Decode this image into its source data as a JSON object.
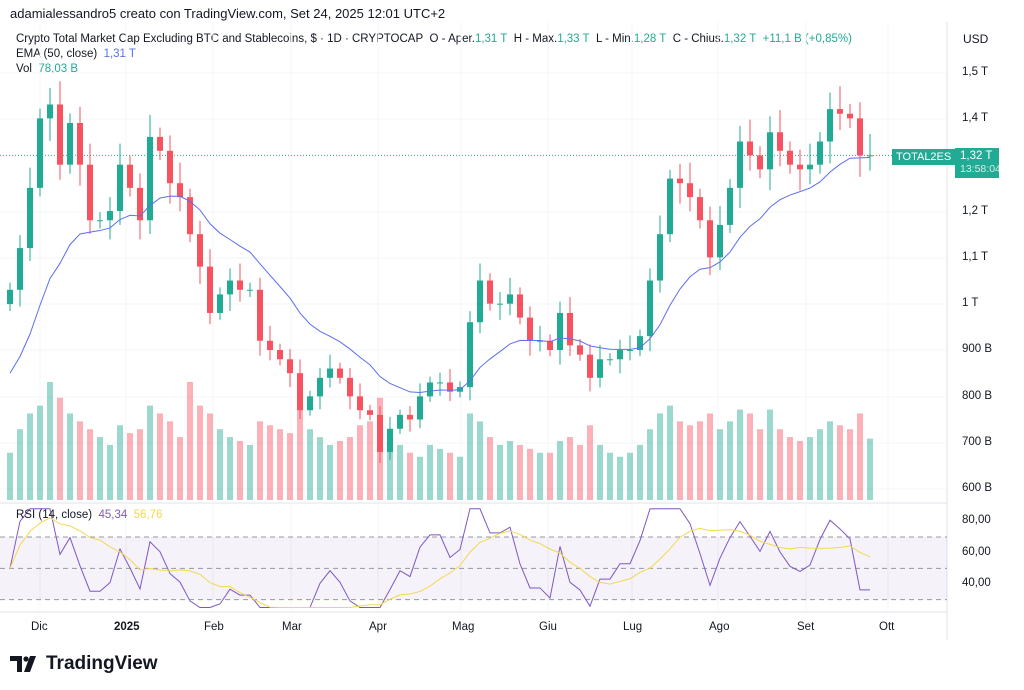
{
  "credit": "adamialessandro5 creato con TradingView.com, Set 24, 2025 12:01 UTC+2",
  "legend": {
    "title": "Crypto Total Market Cap Excluding BTC and Stablecoins, $ · 1D · CRYPTOCAP",
    "o_label": "O - Aper.",
    "o": "1,31 T",
    "h_label": "H - Max.",
    "h": "1,33 T",
    "l_label": "L - Min.",
    "l": "1,28 T",
    "c_label": "C - Chius.",
    "c": "1,32 T",
    "change": "+11,1 B (+0,85%)",
    "ema_label": "EMA (50, close)",
    "ema": "1,31 T",
    "vol_label": "Vol",
    "vol": "78,03 B"
  },
  "currency": "USD",
  "symbol_tag": "TOTAL2ES",
  "last_price": "1,32 T",
  "countdown": "13:58:04",
  "rsi": {
    "label": "RSI (14, close)",
    "value": "45,34",
    "ma": "56,76"
  },
  "colors": {
    "up": "#22ab94",
    "down": "#f7525f",
    "ema": "#5b6ff0",
    "rsi": "#7e57c2",
    "rsi_ma": "#f2d94e"
  },
  "logo": "TradingView",
  "chart_data": {
    "type": "candlestick",
    "date_range": [
      "2024-11-21",
      "2025-09-24"
    ],
    "y_ticks": [
      "1,5 T",
      "1,4 T",
      "1,2 T",
      "1,1 T",
      "1 T",
      "900 B",
      "800 B",
      "700 B",
      "600 B"
    ],
    "y_tick_values": [
      1500,
      1400,
      1200,
      1100,
      1000,
      900,
      800,
      700,
      600
    ],
    "ylim_billions": [
      600,
      1500
    ],
    "x_ticks": [
      "Dic",
      "2025",
      "Feb",
      "Mar",
      "Apr",
      "Mag",
      "Giu",
      "Lug",
      "Ago",
      "Set",
      "Ott"
    ],
    "rsi_ticks": [
      "80,00",
      "60,00",
      "40,00"
    ],
    "rsi_tick_values": [
      80,
      60,
      40
    ],
    "rsi_bands": [
      70,
      50,
      30
    ],
    "closes_billions": [
      1030,
      1120,
      1250,
      1400,
      1430,
      1300,
      1390,
      1300,
      1180,
      1180,
      1200,
      1300,
      1250,
      1180,
      1360,
      1330,
      1260,
      1230,
      1150,
      1080,
      980,
      1020,
      1050,
      1030,
      1030,
      920,
      900,
      880,
      850,
      770,
      800,
      840,
      860,
      840,
      800,
      770,
      760,
      680,
      730,
      760,
      750,
      800,
      830,
      830,
      810,
      820,
      960,
      1050,
      1000,
      1000,
      1020,
      970,
      920,
      920,
      900,
      980,
      910,
      890,
      840,
      880,
      880,
      900,
      900,
      930,
      1050,
      1150,
      1270,
      1260,
      1230,
      1180,
      1100,
      1170,
      1250,
      1350,
      1320,
      1290,
      1370,
      1330,
      1300,
      1290,
      1300,
      1350,
      1420,
      1410,
      1400,
      1320,
      1320
    ],
    "volumes_billions": [
      60,
      90,
      110,
      120,
      150,
      130,
      110,
      100,
      90,
      80,
      70,
      95,
      85,
      90,
      120,
      110,
      100,
      80,
      150,
      120,
      110,
      90,
      80,
      75,
      70,
      100,
      95,
      90,
      85,
      120,
      90,
      80,
      70,
      75,
      80,
      95,
      100,
      130,
      90,
      70,
      60,
      55,
      70,
      65,
      60,
      55,
      110,
      100,
      80,
      70,
      75,
      70,
      65,
      60,
      60,
      75,
      80,
      70,
      95,
      70,
      60,
      55,
      60,
      70,
      90,
      110,
      120,
      100,
      95,
      100,
      110,
      90,
      100,
      115,
      110,
      90,
      115,
      90,
      80,
      75,
      80,
      90,
      100,
      95,
      90,
      110,
      78.03
    ]
  }
}
